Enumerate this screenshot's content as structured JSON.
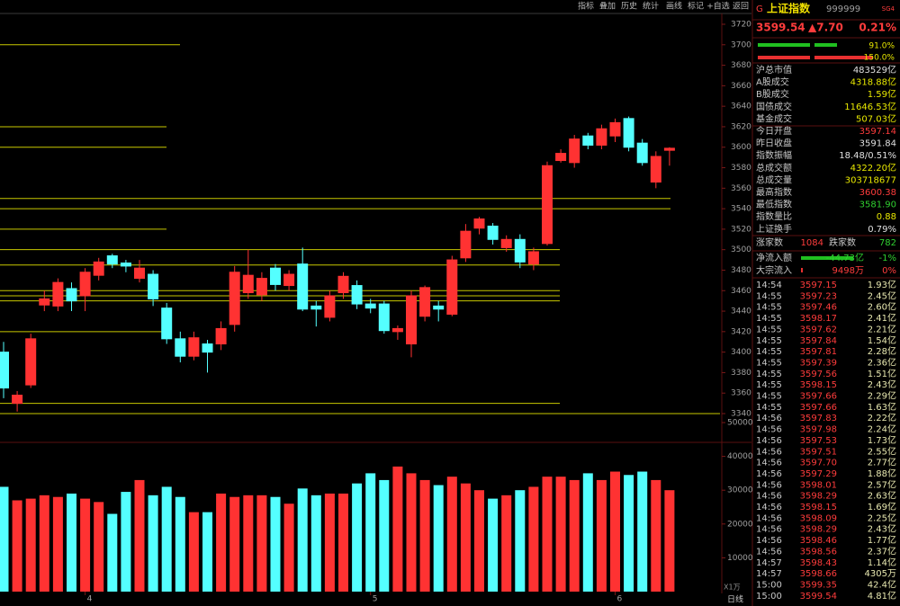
{
  "toolbar": [
    "指标",
    "叠加",
    "历史",
    "统计",
    "画线",
    "标记",
    "+自选",
    "返回"
  ],
  "quote": {
    "market": "G",
    "name": "上证指数",
    "code": "999999",
    "badge": "SG4",
    "price": "3599.54",
    "change": "▲7.70",
    "percent": "0.21%",
    "ratio_up": "91.0%",
    "ratio_down": "150.0%",
    "stats": [
      {
        "label": "沪总市值",
        "value": "483529亿",
        "color": "#e0e0e0"
      },
      {
        "label": "A股成交",
        "value": "4318.88亿",
        "color": "#e8e800"
      },
      {
        "label": "B股成交",
        "value": "1.59亿",
        "color": "#e8e800"
      },
      {
        "label": "国债成交",
        "value": "11646.53亿",
        "color": "#e8e800"
      },
      {
        "label": "基金成交",
        "value": "507.03亿",
        "color": "#e8e800"
      },
      {
        "label": "今日开盘",
        "value": "3597.14",
        "color": "#ff3c3c"
      },
      {
        "label": "昨日收盘",
        "value": "3591.84",
        "color": "#e0e0e0"
      },
      {
        "label": "指数振幅",
        "value": "18.48/0.51%",
        "color": "#e0e0e0"
      },
      {
        "label": "总成交额",
        "value": "4322.20亿",
        "color": "#e8e800"
      },
      {
        "label": "总成交量",
        "value": "303718677",
        "color": "#e8e800"
      },
      {
        "label": "最高指数",
        "value": "3600.38",
        "color": "#ff3c3c"
      },
      {
        "label": "最低指数",
        "value": "3581.90",
        "color": "#30d030"
      },
      {
        "label": "指数量比",
        "value": "0.88",
        "color": "#e8e800"
      },
      {
        "label": "上证换手",
        "value": "0.79%",
        "color": "#e0e0e0"
      }
    ],
    "advance_label": "涨家数",
    "advance": "1084",
    "decline_label": "跌家数",
    "decline": "782",
    "net_inflow_label": "净流入额",
    "net_inflow": "-44.73亿",
    "net_inflow_pct": "-1%",
    "block_inflow_label": "大宗流入",
    "block_inflow": "9498万",
    "block_inflow_pct": "0%"
  },
  "trades": [
    [
      "14:54",
      "3597.15",
      "1.93亿"
    ],
    [
      "14:55",
      "3597.23",
      "2.45亿"
    ],
    [
      "14:55",
      "3597.46",
      "2.60亿"
    ],
    [
      "14:55",
      "3598.17",
      "2.41亿"
    ],
    [
      "14:55",
      "3597.62",
      "2.21亿"
    ],
    [
      "14:55",
      "3597.84",
      "1.54亿"
    ],
    [
      "14:55",
      "3597.81",
      "2.28亿"
    ],
    [
      "14:55",
      "3597.39",
      "2.36亿"
    ],
    [
      "14:55",
      "3597.56",
      "1.51亿"
    ],
    [
      "14:55",
      "3598.15",
      "2.43亿"
    ],
    [
      "14:55",
      "3597.66",
      "2.29亿"
    ],
    [
      "14:55",
      "3597.66",
      "1.63亿"
    ],
    [
      "14:56",
      "3597.83",
      "2.22亿"
    ],
    [
      "14:56",
      "3597.98",
      "2.24亿"
    ],
    [
      "14:56",
      "3597.53",
      "1.73亿"
    ],
    [
      "14:56",
      "3597.51",
      "2.55亿"
    ],
    [
      "14:56",
      "3597.70",
      "2.77亿"
    ],
    [
      "14:56",
      "3597.29",
      "1.88亿"
    ],
    [
      "14:56",
      "3598.01",
      "2.57亿"
    ],
    [
      "14:56",
      "3598.29",
      "2.63亿"
    ],
    [
      "14:56",
      "3598.15",
      "1.69亿"
    ],
    [
      "14:56",
      "3598.09",
      "2.25亿"
    ],
    [
      "14:56",
      "3598.29",
      "2.43亿"
    ],
    [
      "14:56",
      "3598.46",
      "1.77亿"
    ],
    [
      "14:56",
      "3598.56",
      "2.37亿"
    ],
    [
      "14:57",
      "3598.43",
      "1.14亿"
    ],
    [
      "14:57",
      "3598.66",
      "4305万"
    ],
    [
      "15:00",
      "3599.35",
      "42.4亿"
    ],
    [
      "15:00",
      "3599.54",
      "4.81亿"
    ]
  ],
  "chart_data": {
    "type": "candlestick",
    "categories": [
      null,
      null,
      null,
      null,
      null,
      null,
      "4",
      null,
      null,
      null,
      null,
      null,
      null,
      null,
      null,
      null,
      null,
      null,
      null,
      null,
      null,
      null,
      null,
      null,
      null,
      null,
      null,
      "5",
      null,
      null,
      null,
      null,
      null,
      null,
      null,
      null,
      null,
      null,
      null,
      null,
      null,
      null,
      null,
      null,
      null,
      "6",
      null,
      null,
      null,
      null
    ],
    "open": [
      3400,
      3350,
      3368,
      3446,
      3445,
      3462,
      3455,
      3475,
      3494,
      3487,
      3472,
      3476,
      3443,
      3413,
      3396,
      3408,
      3408,
      3427,
      3458,
      3456,
      3482,
      3465,
      3486,
      3445,
      3434,
      3458,
      3465,
      3447,
      3447,
      3420,
      3408,
      3435,
      3445,
      3437,
      3492,
      3521,
      3523,
      3502,
      3510,
      3486,
      3506,
      3587,
      3585,
      3611,
      3602,
      3611,
      3628,
      3604,
      3566,
      3597
    ],
    "close": [
      3365,
      3358,
      3413,
      3452,
      3468,
      3450,
      3478,
      3488,
      3486,
      3484,
      3482,
      3452,
      3413,
      3396,
      3414,
      3400,
      3423,
      3478,
      3475,
      3472,
      3466,
      3476,
      3442,
      3442,
      3455,
      3474,
      3447,
      3443,
      3421,
      3423,
      3455,
      3463,
      3442,
      3490,
      3518,
      3530,
      3510,
      3510,
      3488,
      3498,
      3582,
      3594,
      3608,
      3602,
      3618,
      3624,
      3600,
      3585,
      3591,
      3599
    ],
    "high": [
      3410,
      3362,
      3418,
      3460,
      3472,
      3468,
      3482,
      3492,
      3496,
      3490,
      3490,
      3480,
      3448,
      3420,
      3420,
      3412,
      3430,
      3484,
      3500,
      3478,
      3486,
      3480,
      3502,
      3450,
      3460,
      3478,
      3470,
      3452,
      3450,
      3426,
      3460,
      3465,
      3450,
      3494,
      3525,
      3532,
      3526,
      3514,
      3515,
      3502,
      3586,
      3598,
      3612,
      3614,
      3622,
      3628,
      3630,
      3608,
      3596,
      3600
    ],
    "low": [
      3355,
      3342,
      3365,
      3440,
      3440,
      3440,
      3440,
      3470,
      3482,
      3478,
      3468,
      3445,
      3408,
      3390,
      3392,
      3380,
      3402,
      3420,
      3452,
      3450,
      3460,
      3460,
      3440,
      3425,
      3430,
      3452,
      3442,
      3438,
      3418,
      3412,
      3395,
      3430,
      3430,
      3435,
      3488,
      3515,
      3505,
      3498,
      3482,
      3480,
      3504,
      3585,
      3580,
      3598,
      3598,
      3605,
      3596,
      3582,
      3560,
      3582
    ],
    "volume": [
      31000,
      27000,
      27500,
      28500,
      28000,
      29000,
      27500,
      26500,
      23000,
      29500,
      33000,
      28500,
      31000,
      28000,
      23500,
      23500,
      29000,
      28000,
      28500,
      28500,
      28000,
      26000,
      30500,
      28500,
      29000,
      29000,
      32000,
      35000,
      33000,
      37000,
      35000,
      33000,
      31500,
      34000,
      32000,
      30000,
      27500,
      28500,
      30000,
      31000,
      34000,
      34000,
      33000,
      35000,
      33000,
      35500,
      34500,
      35500,
      33000,
      30000
    ],
    "ylim": [
      3340,
      3720
    ],
    "yticks": [
      3340,
      3360,
      3380,
      3400,
      3420,
      3440,
      3460,
      3480,
      3500,
      3520,
      3540,
      3560,
      3580,
      3600,
      3620,
      3640,
      3660,
      3680,
      3700,
      3720
    ],
    "volume_lim": [
      0,
      50000
    ],
    "volume_ticks": [
      10000,
      20000,
      30000,
      40000,
      50000
    ],
    "volume_unit": "X1万",
    "period": "日线",
    "levels": [
      3700,
      3620,
      3600,
      3550,
      3540,
      3520,
      3500,
      3485,
      3460,
      3455,
      3450,
      3420,
      3350,
      3340
    ],
    "up_color": "#ff3232",
    "down_color": "#54ffff",
    "level_color": "#c8c800"
  }
}
